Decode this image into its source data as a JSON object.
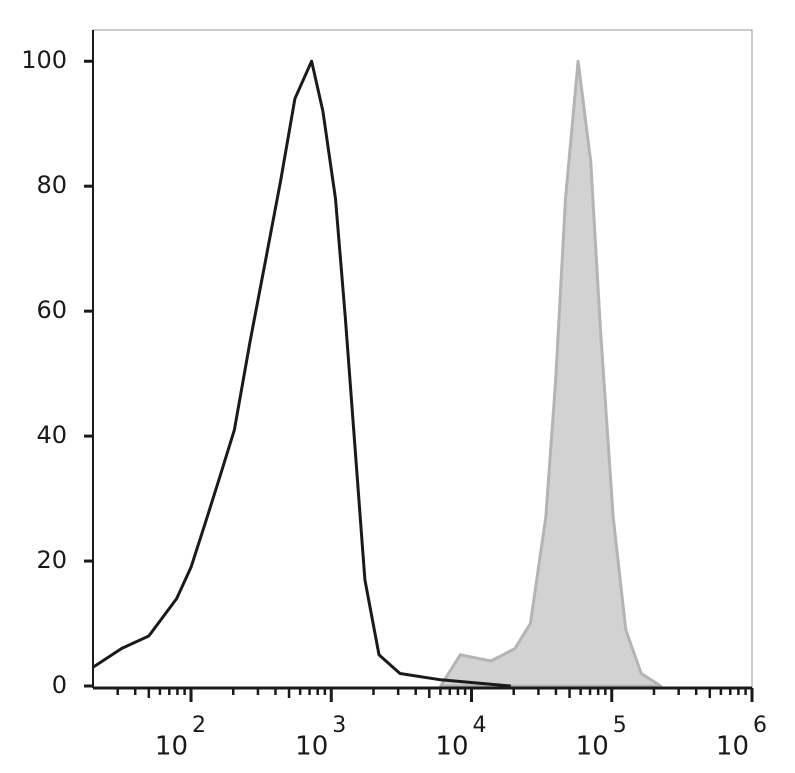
{
  "chart_data": {
    "type": "histogram-overlay",
    "xscale": "log",
    "xlim": [
      20,
      1000000
    ],
    "ylim": [
      0,
      105
    ],
    "yticks": [
      0,
      20,
      40,
      60,
      80,
      100
    ],
    "xticks": [
      {
        "value": 100,
        "label": "10",
        "sup": "2"
      },
      {
        "value": 1000,
        "label": "10",
        "sup": "3"
      },
      {
        "value": 10000,
        "label": "10",
        "sup": "4"
      },
      {
        "value": 100000,
        "label": "10",
        "sup": "5"
      },
      {
        "value": 1000000,
        "label": "10",
        "sup": "6"
      }
    ],
    "series": [
      {
        "color": "#b4b4b4",
        "fill": "#d2d2d2",
        "x": [
          6026,
          8318,
          13804,
          20417,
          26303,
          33884,
          39811,
          46774,
          57544,
          70795,
          83176,
          102329,
          125893,
          162181,
          223872
        ],
        "values": [
          0,
          5,
          4,
          6,
          10,
          27,
          49,
          78,
          100,
          84,
          57,
          27,
          9,
          2,
          0
        ]
      },
      {
        "color": "#1a1a1a",
        "x": [
          20,
          32,
          50,
          79,
          100,
          126,
          158,
          204,
          263,
          339,
          437,
          550,
          724,
          871,
          1072,
          1259,
          1479,
          1738,
          2188,
          3090,
          6026,
          19055
        ],
        "values": [
          3,
          6,
          8,
          14,
          19,
          26,
          33,
          41,
          55,
          68,
          81,
          94,
          100,
          92,
          78,
          59,
          38,
          17,
          5,
          2,
          1,
          0
        ]
      }
    ]
  }
}
